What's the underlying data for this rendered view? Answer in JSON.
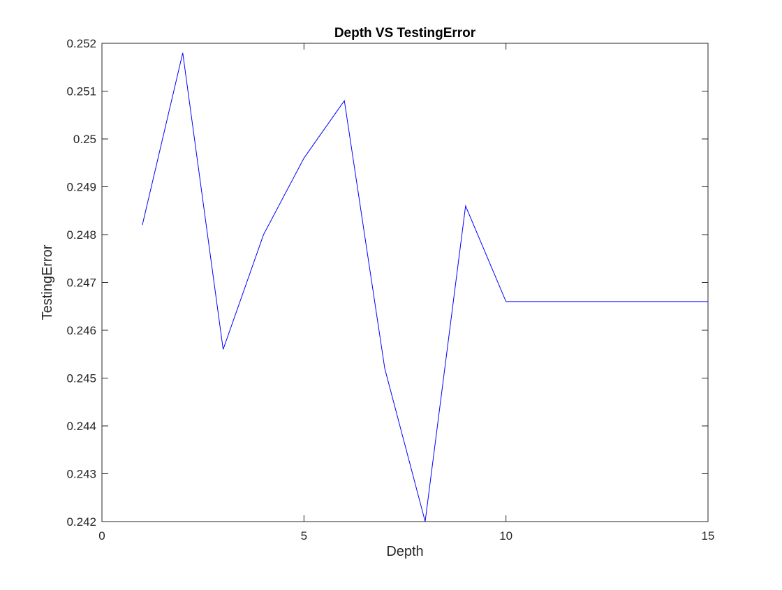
{
  "chart_data": {
    "type": "line",
    "title": "Depth VS TestingError",
    "xlabel": "Depth",
    "ylabel": "TestingError",
    "xlim": [
      0,
      15
    ],
    "ylim": [
      0.242,
      0.252
    ],
    "x_ticks": [
      0,
      5,
      10,
      15
    ],
    "x_tick_labels": [
      "0",
      "5",
      "10",
      "15"
    ],
    "y_ticks": [
      0.242,
      0.243,
      0.244,
      0.245,
      0.246,
      0.247,
      0.248,
      0.249,
      0.25,
      0.251,
      0.252
    ],
    "y_tick_labels": [
      "0.242",
      "0.243",
      "0.244",
      "0.245",
      "0.246",
      "0.247",
      "0.248",
      "0.249",
      "0.25",
      "0.251",
      "0.252"
    ],
    "grid": false,
    "box": true,
    "series": [
      {
        "color": "#0000ff",
        "x": [
          1,
          2,
          3,
          4,
          5,
          6,
          7,
          8,
          9,
          10,
          11,
          12,
          13,
          14,
          15
        ],
        "y": [
          0.2482,
          0.2518,
          0.2456,
          0.248,
          0.2496,
          0.2508,
          0.2452,
          0.242,
          0.2486,
          0.2466,
          0.2466,
          0.2466,
          0.2466,
          0.2466,
          0.2466
        ]
      }
    ]
  }
}
